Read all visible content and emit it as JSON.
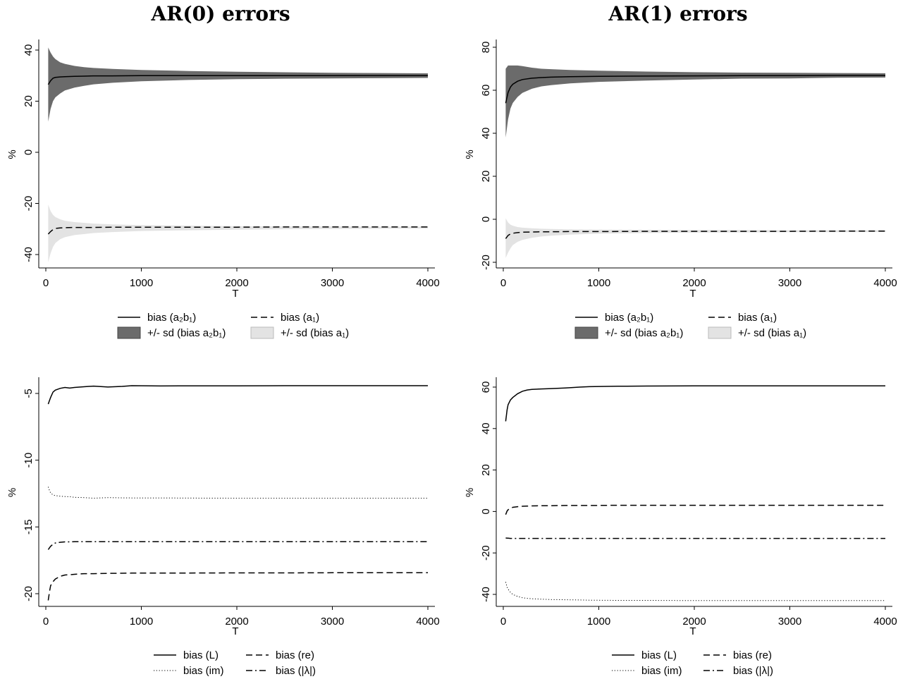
{
  "titles": {
    "left": "AR(0) errors",
    "right": "AR(1) errors"
  },
  "colors": {
    "dark_band": "#6b6b6b",
    "light_band": "#e3e3e3",
    "line": "#000000"
  },
  "chart_data": [
    {
      "id": "ar0-top",
      "type": "area",
      "xlabel": "T",
      "ylabel": "%",
      "xlim": [
        0,
        4000
      ],
      "ylim": [
        -45,
        45
      ],
      "xticks": [
        0,
        1000,
        2000,
        3000,
        4000
      ],
      "yticks": [
        -40,
        -20,
        0,
        20,
        40
      ],
      "x": [
        25,
        50,
        75,
        100,
        150,
        200,
        300,
        400,
        500,
        700,
        1000,
        1500,
        2000,
        2500,
        3000,
        3500,
        4000
      ],
      "series": [
        {
          "name": "bias (a₂b₁)",
          "style": "solid",
          "values": [
            26.5,
            28,
            29,
            29.3,
            29.5,
            29.6,
            29.7,
            29.8,
            29.9,
            29.9,
            30,
            30,
            30,
            30,
            30,
            30,
            30
          ]
        },
        {
          "name": "bias (a₁)",
          "style": "dash",
          "values": [
            -32,
            -31,
            -30.2,
            -29.8,
            -29.6,
            -29.5,
            -29.4,
            -29.4,
            -29.4,
            -29.3,
            -29.3,
            -29.3,
            -29.3,
            -29.2,
            -29.2,
            -29.2,
            -29.2
          ]
        }
      ],
      "bands": [
        {
          "name": "+/- sd (bias a₂b₁)",
          "fill": "dark",
          "upper": [
            41,
            39,
            37.5,
            36.5,
            35.2,
            34.6,
            33.8,
            33.3,
            33,
            32.6,
            32.2,
            31.8,
            31.5,
            31.3,
            31.1,
            31,
            30.9
          ],
          "lower": [
            12,
            17,
            20,
            21.5,
            23,
            24.2,
            25.3,
            26,
            26.6,
            27.2,
            27.8,
            28.3,
            28.6,
            28.8,
            28.9,
            29,
            29.1
          ]
        },
        {
          "name": "+/- sd (bias a₁)",
          "fill": "light",
          "upper": [
            -20.5,
            -23,
            -24.5,
            -25.3,
            -26.2,
            -26.8,
            -27.3,
            -27.6,
            -27.9,
            -28.2,
            -28.5,
            -28.7,
            -28.9,
            -29,
            -29,
            -29.1,
            -29.1
          ],
          "lower": [
            -43,
            -39.5,
            -37,
            -35.5,
            -34,
            -33.2,
            -32.4,
            -32,
            -31.6,
            -31.2,
            -30.8,
            -30.5,
            -30.3,
            -30.1,
            -30,
            -29.9,
            -29.8
          ]
        }
      ],
      "legend": {
        "placement": "bottom",
        "entries": [
          {
            "label": "bias (a₂b₁)",
            "kind": "line",
            "style": "solid"
          },
          {
            "label": "bias (a₁)",
            "kind": "line",
            "style": "dash"
          },
          {
            "label": "+/- sd (bias a₂b₁)",
            "kind": "box",
            "fill": "dark"
          },
          {
            "label": "+/- sd (bias a₁)",
            "kind": "box",
            "fill": "light"
          }
        ]
      }
    },
    {
      "id": "ar1-top",
      "type": "area",
      "xlabel": "T",
      "ylabel": "%",
      "xlim": [
        0,
        4000
      ],
      "ylim": [
        -23,
        83
      ],
      "xticks": [
        0,
        1000,
        2000,
        3000,
        4000
      ],
      "yticks": [
        -20,
        0,
        20,
        40,
        60,
        80
      ],
      "x": [
        25,
        50,
        75,
        100,
        150,
        200,
        300,
        400,
        500,
        700,
        1000,
        1500,
        2000,
        2500,
        3000,
        3500,
        4000
      ],
      "series": [
        {
          "name": "bias (a₂b₁)",
          "style": "solid",
          "values": [
            54,
            59,
            61.5,
            62.8,
            64.2,
            65,
            65.6,
            65.9,
            66.1,
            66.3,
            66.5,
            66.6,
            66.7,
            66.8,
            66.8,
            66.9,
            66.9
          ]
        },
        {
          "name": "bias (a₁)",
          "style": "dash",
          "values": [
            -9,
            -7.5,
            -6.8,
            -6.5,
            -6.2,
            -6,
            -5.9,
            -5.8,
            -5.8,
            -5.7,
            -5.7,
            -5.6,
            -5.6,
            -5.6,
            -5.6,
            -5.5,
            -5.5
          ]
        }
      ],
      "bands": [
        {
          "name": "+/- sd (bias a₂b₁)",
          "fill": "dark",
          "upper": [
            70,
            71.5,
            71.5,
            71.5,
            71.5,
            71.2,
            70.5,
            70,
            69.8,
            69.4,
            69.1,
            68.7,
            68.4,
            68.2,
            68.1,
            68,
            67.9
          ]
        },
        {
          "name": "+/- sd (bias a₁)",
          "fill": "light",
          "upper": [
            0.5,
            -1.5,
            -2.5,
            -3,
            -3.6,
            -3.9,
            -4.2,
            -4.4,
            -4.5,
            -4.7,
            -4.8,
            -4.9,
            -5,
            -5,
            -5.1,
            -5.1,
            -5.1
          ],
          "lower": [
            -18,
            -15.5,
            -13.5,
            -12,
            -10.5,
            -9.6,
            -8.6,
            -8,
            -7.6,
            -7.1,
            -6.7,
            -6.4,
            -6.2,
            -6.1,
            -6,
            -6,
            -5.9
          ]
        }
      ],
      "legend": {
        "placement": "bottom",
        "entries": [
          {
            "label": "bias (a₂b₁)",
            "kind": "line",
            "style": "solid"
          },
          {
            "label": "bias (a₁)",
            "kind": "line",
            "style": "dash"
          },
          {
            "label": "+/- sd (bias a₂b₁)",
            "kind": "box",
            "fill": "dark"
          },
          {
            "label": "+/- sd (bias a₁)",
            "kind": "box",
            "fill": "light"
          }
        ]
      }
    },
    {
      "id": "ar0-bottom",
      "type": "line",
      "xlabel": "T",
      "ylabel": "%",
      "xlim": [
        0,
        4000
      ],
      "ylim": [
        -21,
        -4
      ],
      "xticks": [
        0,
        1000,
        2000,
        3000,
        4000
      ],
      "yticks": [
        -20,
        -15,
        -10,
        -5
      ],
      "x": [
        25,
        40,
        50,
        75,
        100,
        150,
        200,
        250,
        300,
        400,
        500,
        650,
        800,
        900,
        1200,
        1500,
        2000,
        2500,
        3000,
        3500,
        4000
      ],
      "series": [
        {
          "name": "bias (L)",
          "style": "solid",
          "values": [
            -5.8,
            -5.5,
            -5.3,
            -4.9,
            -4.75,
            -4.62,
            -4.55,
            -4.6,
            -4.55,
            -4.5,
            -4.45,
            -4.52,
            -4.47,
            -4.42,
            -4.44,
            -4.43,
            -4.43,
            -4.42,
            -4.42,
            -4.42,
            -4.42
          ]
        },
        {
          "name": "bias (im)",
          "style": "dot",
          "values": [
            -12,
            -12.3,
            -12.45,
            -12.6,
            -12.65,
            -12.7,
            -12.72,
            -12.74,
            -12.78,
            -12.8,
            -12.85,
            -12.8,
            -12.82,
            -12.83,
            -12.83,
            -12.84,
            -12.85,
            -12.85,
            -12.85,
            -12.85,
            -12.85
          ]
        },
        {
          "name": "bias (|λ|)",
          "style": "dashdot",
          "values": [
            -16.7,
            -16.55,
            -16.45,
            -16.3,
            -16.2,
            -16.15,
            -16.12,
            -16.12,
            -16.1,
            -16.1,
            -16.1,
            -16.1,
            -16.1,
            -16.1,
            -16.1,
            -16.1,
            -16.1,
            -16.1,
            -16.1,
            -16.1,
            -16.1
          ]
        },
        {
          "name": "bias (re)",
          "style": "dash",
          "values": [
            -20.5,
            -19.8,
            -19.4,
            -19.1,
            -18.9,
            -18.7,
            -18.6,
            -18.58,
            -18.55,
            -18.5,
            -18.5,
            -18.48,
            -18.47,
            -18.46,
            -18.45,
            -18.45,
            -18.44,
            -18.44,
            -18.43,
            -18.43,
            -18.43
          ]
        }
      ],
      "legend": {
        "placement": "bottom",
        "entries": [
          {
            "label": "bias (L)",
            "kind": "line",
            "style": "solid"
          },
          {
            "label": "bias (re)",
            "kind": "line",
            "style": "dash"
          },
          {
            "label": "bias (im)",
            "kind": "line",
            "style": "dot"
          },
          {
            "label": "bias (|λ|)",
            "kind": "line",
            "style": "dashdot"
          }
        ]
      }
    },
    {
      "id": "ar1-bottom",
      "type": "line",
      "xlabel": "T",
      "ylabel": "%",
      "xlim": [
        0,
        4000
      ],
      "ylim": [
        -47,
        64
      ],
      "xticks": [
        0,
        1000,
        2000,
        3000,
        4000
      ],
      "yticks": [
        -40,
        -20,
        0,
        20,
        40,
        60
      ],
      "x": [
        25,
        40,
        50,
        75,
        100,
        150,
        200,
        250,
        300,
        400,
        500,
        650,
        800,
        900,
        1200,
        1500,
        2000,
        2500,
        3000,
        3500,
        4000
      ],
      "series": [
        {
          "name": "bias (L)",
          "style": "solid",
          "values": [
            43.5,
            49,
            51.5,
            53.8,
            55,
            56.8,
            58,
            58.6,
            58.9,
            59.1,
            59.3,
            59.6,
            60,
            60.2,
            60.4,
            60.5,
            60.6,
            60.6,
            60.6,
            60.6,
            60.6
          ]
        },
        {
          "name": "bias (re)",
          "style": "dash",
          "values": [
            -1.5,
            0.2,
            0.8,
            1.5,
            2,
            2.3,
            2.5,
            2.6,
            2.7,
            2.8,
            2.8,
            2.9,
            2.9,
            2.9,
            3,
            3,
            3,
            3,
            3,
            3,
            3
          ]
        },
        {
          "name": "bias (|λ|)",
          "style": "dashdot",
          "values": [
            -12.8,
            -12.9,
            -12.9,
            -13,
            -13,
            -13,
            -13,
            -13,
            -13,
            -13,
            -13,
            -13,
            -13,
            -13,
            -13,
            -13,
            -13,
            -13,
            -13,
            -13,
            -13
          ]
        },
        {
          "name": "bias (im)",
          "style": "dot",
          "values": [
            -34,
            -36.5,
            -37.5,
            -39,
            -40,
            -41,
            -41.6,
            -41.9,
            -42.1,
            -42.3,
            -42.5,
            -42.6,
            -42.7,
            -42.8,
            -42.9,
            -42.9,
            -43,
            -43,
            -43,
            -43,
            -43
          ]
        }
      ],
      "legend": {
        "placement": "bottom",
        "entries": [
          {
            "label": "bias (L)",
            "kind": "line",
            "style": "solid"
          },
          {
            "label": "bias (re)",
            "kind": "line",
            "style": "dash"
          },
          {
            "label": "bias (im)",
            "kind": "line",
            "style": "dot"
          },
          {
            "label": "bias (|λ|)",
            "kind": "line",
            "style": "dashdot"
          }
        ]
      }
    }
  ]
}
